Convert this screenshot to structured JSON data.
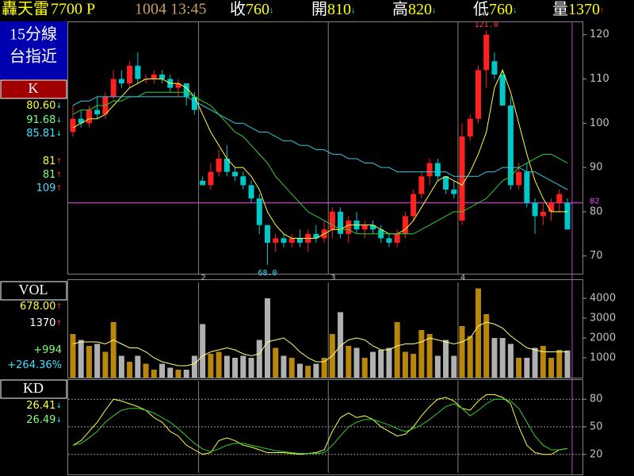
{
  "header": {
    "name": "轟天雷",
    "code": "7700 P",
    "time": "1004 13:45",
    "quotes": [
      {
        "label": "收",
        "value": "760",
        "arrow": "↓",
        "arrow_color": "#00ffff"
      },
      {
        "label": "開",
        "value": "810",
        "arrow": "↓",
        "arrow_color": "#00ffff"
      },
      {
        "label": "高",
        "value": "820",
        "arrow": "↓",
        "arrow_color": "#00ffff"
      },
      {
        "label": "低",
        "value": "760",
        "arrow": "↓",
        "arrow_color": "#00ffff"
      },
      {
        "label": "量",
        "value": "1370",
        "arrow": "↑",
        "arrow_color": "#ff3030"
      }
    ]
  },
  "side": {
    "title": [
      "15分線",
      "台指近"
    ]
  },
  "chart_data": [
    {
      "type": "candlestick",
      "label": "K",
      "up_color": "#ff2020",
      "down_color": "#00c8c8",
      "categories": [
        null,
        null,
        null,
        null,
        null,
        null,
        null,
        null,
        null,
        null,
        null,
        null,
        null,
        null,
        null,
        null,
        "2",
        null,
        null,
        null,
        null,
        null,
        null,
        null,
        null,
        null,
        null,
        null,
        null,
        null,
        null,
        null,
        "3",
        null,
        null,
        null,
        null,
        null,
        null,
        null,
        null,
        null,
        null,
        null,
        null,
        null,
        null,
        null,
        "4",
        null,
        null,
        null,
        null,
        null,
        null,
        null,
        null,
        null,
        null,
        null,
        null,
        null
      ],
      "open": [
        98,
        101,
        100,
        103,
        102,
        106,
        110,
        109,
        113,
        110,
        110,
        111,
        110,
        108,
        109,
        106,
        87,
        86,
        89,
        92,
        89,
        88,
        86,
        83,
        77,
        73,
        74,
        73,
        74,
        73,
        75,
        74,
        76,
        80,
        75,
        78,
        76,
        77,
        76,
        74,
        73,
        75,
        79,
        84,
        88,
        91,
        88,
        85,
        78,
        97,
        101,
        112,
        114,
        111,
        104,
        86,
        89,
        82,
        79,
        80,
        82,
        82
      ],
      "high": [
        104,
        103,
        104,
        106,
        107,
        112,
        112,
        114,
        116,
        111,
        112,
        112,
        111,
        110,
        109,
        107,
        88,
        91,
        94,
        95,
        90,
        89,
        87,
        84,
        77,
        75,
        75,
        75,
        76,
        76,
        77,
        78,
        81,
        81,
        79,
        80,
        78,
        78,
        77,
        75,
        76,
        80,
        85,
        89,
        92,
        92,
        88,
        87,
        100,
        102,
        113,
        121,
        116,
        112,
        106,
        91,
        91,
        83,
        82,
        83,
        85,
        83
      ],
      "low": [
        97,
        99,
        99,
        101,
        101,
        105,
        108,
        108,
        109,
        109,
        109,
        109,
        107,
        106,
        104,
        102,
        86,
        85,
        88,
        88,
        87,
        85,
        82,
        75,
        68,
        71,
        72,
        72,
        72,
        71,
        73,
        73,
        74,
        74,
        73,
        75,
        74,
        75,
        73,
        72,
        72,
        74,
        78,
        83,
        86,
        87,
        84,
        83,
        77,
        96,
        100,
        108,
        110,
        104,
        85,
        85,
        81,
        75,
        77,
        78,
        80,
        76
      ],
      "close": [
        101,
        100,
        103,
        102,
        106,
        110,
        109,
        113,
        110,
        110,
        111,
        110,
        108,
        109,
        106,
        103,
        86,
        89,
        92,
        89,
        88,
        86,
        83,
        77,
        73,
        74,
        73,
        74,
        73,
        75,
        74,
        76,
        80,
        75,
        78,
        76,
        77,
        76,
        74,
        73,
        75,
        79,
        84,
        88,
        91,
        88,
        85,
        84,
        97,
        101,
        112,
        120,
        111,
        104,
        86,
        89,
        82,
        79,
        80,
        82,
        84,
        76
      ],
      "series": [
        {
          "color": "#ffff40",
          "values": [
            99,
            100,
            101,
            101,
            102,
            104,
            106,
            108,
            109,
            110,
            110,
            110,
            109,
            109,
            108,
            106,
            102,
            98,
            95,
            92,
            90,
            90,
            88,
            85,
            80,
            77,
            75,
            74,
            74,
            74,
            74,
            75,
            76,
            76,
            77,
            77,
            77,
            77,
            76,
            75,
            75,
            76,
            78,
            81,
            84,
            87,
            88,
            87,
            86,
            89,
            93,
            98,
            108,
            112,
            107,
            100,
            93,
            87,
            83,
            80,
            80,
            80
          ]
        },
        {
          "color": "#30d030",
          "values": [
            102,
            103,
            103,
            104,
            104,
            105,
            105,
            106,
            106,
            107,
            107,
            107,
            107,
            107,
            107,
            106,
            105,
            104,
            102,
            100,
            98,
            97,
            95,
            93,
            91,
            88,
            86,
            84,
            82,
            80,
            79,
            78,
            77,
            76,
            76,
            75,
            75,
            75,
            75,
            75,
            75,
            75,
            75,
            76,
            77,
            78,
            79,
            80,
            80,
            81,
            82,
            83,
            85,
            87,
            88,
            90,
            91,
            92,
            93,
            93,
            92,
            91
          ]
        },
        {
          "color": "#30c8e0",
          "values": [
            104,
            105,
            105,
            106,
            106,
            106,
            106,
            106,
            106,
            106,
            106,
            106,
            106,
            106,
            106,
            105,
            104,
            103,
            102,
            101,
            100,
            100,
            99,
            98,
            98,
            97,
            96,
            96,
            95,
            95,
            94,
            94,
            93,
            93,
            92,
            92,
            91,
            91,
            90,
            90,
            89,
            89,
            89,
            89,
            89,
            89,
            89,
            88,
            88,
            88,
            88,
            89,
            89,
            90,
            90,
            90,
            89,
            89,
            88,
            87,
            86,
            85
          ]
        }
      ],
      "ylim": [
        66,
        123
      ],
      "yticks": [
        70,
        80,
        90,
        100,
        110,
        120
      ],
      "ref_line": 82,
      "ref_color": "#ff40ff",
      "high_label": {
        "value": 121,
        "label": "121.0"
      },
      "low_label": {
        "value": 68,
        "label": "68.0"
      },
      "readouts": [
        {
          "value": "80.60",
          "arrow": "↓",
          "color": "#ffff40",
          "arrow_color": "#00ffff"
        },
        {
          "value": "91.68",
          "arrow": "↓",
          "color": "#80ff80",
          "arrow_color": "#00ffff"
        },
        {
          "value": "85.81",
          "arrow": "↓",
          "color": "#40e0ff",
          "arrow_color": "#00ffff"
        },
        {
          "value": "81",
          "arrow": "↑",
          "color": "#ffff40",
          "arrow_color": "#ff3030"
        },
        {
          "value": "81",
          "arrow": "↑",
          "color": "#80ff80",
          "arrow_color": "#ff3030"
        },
        {
          "value": "109",
          "arrow": "↑",
          "color": "#40e0ff",
          "arrow_color": "#ff3030"
        }
      ]
    },
    {
      "type": "bar",
      "label": "VOL",
      "up_color": "#b8860b",
      "down_color": "#b0b0b0",
      "values": [
        2200,
        1900,
        1600,
        1700,
        1300,
        2800,
        1100,
        800,
        1100,
        700,
        400,
        700,
        500,
        400,
        400,
        1100,
        2700,
        1200,
        1300,
        1100,
        1000,
        1100,
        1000,
        1900,
        4000,
        1500,
        1100,
        1000,
        700,
        600,
        700,
        1000,
        2200,
        3300,
        1600,
        1500,
        1000,
        1300,
        1400,
        1500,
        2800,
        1300,
        1200,
        2400,
        2200,
        1100,
        1900,
        1100,
        2600,
        2100,
        4500,
        3200,
        2000,
        2000,
        1700,
        1000,
        1000,
        1500,
        1600,
        1000,
        1400,
        1370
      ],
      "series": [
        {
          "color": "#ffff80",
          "values": [
            1700,
            1800,
            1800,
            1800,
            1700,
            1900,
            1700,
            1500,
            1500,
            1300,
            1000,
            800,
            700,
            600,
            600,
            700,
            1100,
            1300,
            1400,
            1500,
            1400,
            1200,
            1100,
            1200,
            1800,
            1900,
            2000,
            1700,
            1300,
            1000,
            800,
            800,
            1100,
            1600,
            1900,
            2000,
            1900,
            1600,
            1400,
            1400,
            1600,
            1700,
            1700,
            1800,
            2000,
            1900,
            1800,
            1700,
            1800,
            2000,
            2600,
            2800,
            2700,
            2500,
            2100,
            1800,
            1500,
            1400,
            1300,
            1300,
            1300,
            1300
          ]
        }
      ],
      "ylim": [
        0,
        4800
      ],
      "yticks": [
        1000,
        2000,
        3000,
        4000
      ],
      "readouts": [
        {
          "value": "678.00",
          "arrow": "↑",
          "color": "#ffff40",
          "arrow_color": "#ff3030"
        },
        {
          "value": "1370",
          "arrow": "↑",
          "color": "#ffffff",
          "arrow_color": "#ff3030"
        },
        {
          "value": "+994",
          "color": "#80ff80"
        },
        {
          "value": "+264.36%",
          "color": "#40e0ff"
        }
      ]
    },
    {
      "type": "line",
      "label": "KD",
      "grid": true,
      "series": [
        {
          "color": "#ffff40",
          "values": [
            30,
            35,
            45,
            55,
            68,
            80,
            78,
            75,
            72,
            68,
            60,
            55,
            45,
            40,
            30,
            25,
            20,
            22,
            35,
            38,
            35,
            30,
            28,
            25,
            22,
            22,
            22,
            21,
            20,
            21,
            22,
            25,
            45,
            60,
            65,
            60,
            62,
            58,
            50,
            45,
            40,
            42,
            50,
            62,
            72,
            80,
            82,
            78,
            70,
            68,
            78,
            85,
            85,
            82,
            75,
            50,
            30,
            22,
            20,
            20,
            25,
            26.41
          ]
        },
        {
          "color": "#30d030",
          "values": [
            30,
            32,
            38,
            45,
            55,
            62,
            68,
            70,
            70,
            68,
            65,
            60,
            55,
            48,
            40,
            32,
            26,
            23,
            26,
            30,
            32,
            32,
            30,
            28,
            26,
            24,
            23,
            22,
            21,
            21,
            21,
            22,
            30,
            40,
            50,
            55,
            58,
            58,
            55,
            52,
            48,
            45,
            48,
            52,
            58,
            65,
            72,
            75,
            70,
            62,
            68,
            75,
            80,
            80,
            78,
            70,
            55,
            40,
            30,
            25,
            25,
            26.49
          ]
        }
      ],
      "ylim": [
        0,
        100
      ],
      "yticks": [
        20,
        50,
        80
      ],
      "readouts": [
        {
          "value": "26.41",
          "arrow": "↓",
          "color": "#ffff40",
          "arrow_color": "#00ffff"
        },
        {
          "value": "26.49",
          "arrow": "↓",
          "color": "#80ff80",
          "arrow_color": "#00ffff"
        }
      ]
    }
  ]
}
